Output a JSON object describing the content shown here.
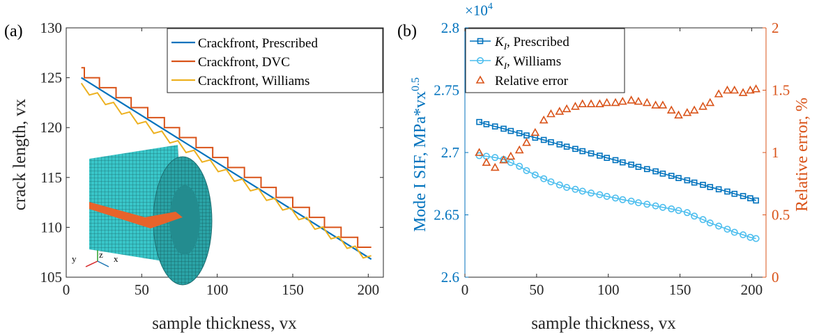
{
  "chart_data": [
    {
      "panel_label": "(a)",
      "type": "line",
      "xlabel": "sample thickness, vx",
      "ylabel": "crack length, vx",
      "xlim": [
        0,
        210
      ],
      "ylim": [
        105,
        130
      ],
      "xticks": [
        "0",
        "50",
        "100",
        "150",
        "200"
      ],
      "yticks": [
        "105",
        "110",
        "115",
        "120",
        "125",
        "130"
      ],
      "legend_position": "top-right",
      "series": [
        {
          "name": "Crackfront, Prescribed",
          "color": "#0072BD",
          "kind": "line",
          "x": [
            10,
            202
          ],
          "y": [
            125,
            106.8
          ]
        },
        {
          "name": "Crackfront, DVC",
          "color": "#D95319",
          "kind": "stairs",
          "x": [
            10,
            202
          ],
          "y_start": 126,
          "y_end": 108,
          "step": 1,
          "step_x": [
            12,
            22,
            33,
            43,
            54,
            65,
            75,
            86,
            97,
            107,
            118,
            129,
            139,
            150,
            161,
            171,
            182,
            193
          ]
        },
        {
          "name": "Crackfront, Williams",
          "color": "#EDB120",
          "kind": "sawtooth",
          "x": [
            10,
            202
          ],
          "y_start": 124.3,
          "y_end": 107,
          "step": 1.25
        }
      ],
      "inset": {
        "description": "3D specimen mesh",
        "axis_labels": [
          "z",
          "y",
          "x"
        ],
        "mesh_color": "#39C6C9",
        "crack_color": "#E8632B"
      }
    },
    {
      "panel_label": "(b)",
      "type": "line",
      "xlabel": "sample thickness, vx",
      "ylabel_left": "Mode I SIF, MPa*vx",
      "ylabel_left_sup": "0.5",
      "ylabel_right": "Relative error, %",
      "multiplier": "×10",
      "multiplier_exp": "4",
      "xlim": [
        0,
        210
      ],
      "ylim_left": [
        2.6,
        2.8
      ],
      "ylim_right": [
        0,
        2
      ],
      "xticks": [
        "0",
        "50",
        "100",
        "150",
        "200"
      ],
      "yticks_left": [
        "2.6",
        "2.65",
        "2.7",
        "2.75",
        "2.8"
      ],
      "yticks_right": [
        "0",
        "0.5",
        "1",
        "1.5",
        "2"
      ],
      "left_color": "#0072BD",
      "right_color": "#D95319",
      "legend_position": "top-left",
      "series": [
        {
          "name": "K",
          "name_sub": "I",
          "name_rest": ", Prescribed",
          "color": "#0072BD",
          "marker": "square",
          "axis": "left",
          "x": [
            10,
            15,
            21,
            27,
            32,
            38,
            43,
            49,
            55,
            60,
            66,
            71,
            77,
            82,
            88,
            94,
            99,
            105,
            110,
            116,
            121,
            127,
            133,
            138,
            144,
            149,
            155,
            160,
            166,
            171,
            177,
            183,
            188,
            194,
            199,
            203
          ],
          "y": [
            2.7245,
            2.7227,
            2.7209,
            2.7191,
            2.7173,
            2.7155,
            2.7137,
            2.7119,
            2.7101,
            2.7083,
            2.7065,
            2.7047,
            2.7029,
            2.7011,
            2.6993,
            2.6975,
            2.6957,
            2.6939,
            2.6921,
            2.6903,
            2.6885,
            2.6867,
            2.6849,
            2.6831,
            2.6813,
            2.6795,
            2.6777,
            2.6759,
            2.6741,
            2.6723,
            2.6705,
            2.6687,
            2.6669,
            2.6651,
            2.6633,
            2.6615
          ]
        },
        {
          "name": "K",
          "name_sub": "I",
          "name_rest": ", Williams",
          "color": "#4DBEEE",
          "marker": "circle",
          "axis": "left",
          "x": [
            10,
            15,
            21,
            27,
            32,
            38,
            43,
            49,
            55,
            60,
            66,
            71,
            77,
            82,
            88,
            94,
            99,
            105,
            110,
            116,
            121,
            127,
            133,
            138,
            144,
            149,
            155,
            160,
            166,
            171,
            177,
            183,
            188,
            194,
            199,
            203
          ],
          "y": [
            2.6975,
            2.697,
            2.696,
            2.6945,
            2.692,
            2.689,
            2.6855,
            2.682,
            2.679,
            2.6765,
            2.674,
            2.672,
            2.6705,
            2.669,
            2.6675,
            2.6662,
            2.6648,
            2.6635,
            2.6622,
            2.661,
            2.6597,
            2.6585,
            2.6572,
            2.656,
            2.6548,
            2.6535,
            2.6518,
            2.649,
            2.6462,
            2.6435,
            2.641,
            2.6385,
            2.636,
            2.634,
            2.632,
            2.631
          ]
        },
        {
          "name": "Relative error",
          "color": "#D95319",
          "marker": "triangle",
          "axis": "right",
          "x": [
            10,
            15,
            21,
            27,
            32,
            38,
            43,
            49,
            55,
            60,
            66,
            71,
            77,
            82,
            88,
            94,
            99,
            105,
            110,
            116,
            121,
            127,
            133,
            138,
            144,
            149,
            155,
            160,
            166,
            171,
            177,
            183,
            188,
            194,
            199,
            203
          ],
          "y": [
            1.0,
            0.92,
            0.88,
            0.94,
            0.97,
            1.02,
            1.08,
            1.16,
            1.26,
            1.31,
            1.33,
            1.35,
            1.37,
            1.39,
            1.39,
            1.39,
            1.4,
            1.4,
            1.41,
            1.42,
            1.41,
            1.4,
            1.38,
            1.38,
            1.34,
            1.3,
            1.32,
            1.34,
            1.37,
            1.4,
            1.47,
            1.5,
            1.5,
            1.48,
            1.5,
            1.51
          ]
        }
      ]
    }
  ]
}
